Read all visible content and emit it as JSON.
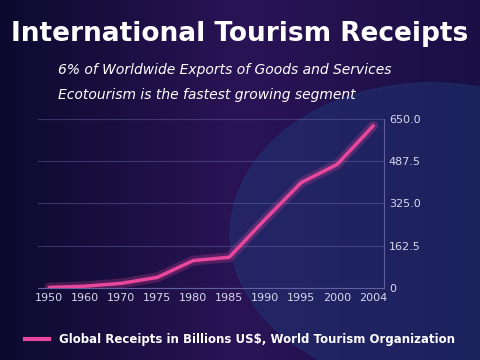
{
  "chart_data": {
    "type": "line",
    "title": "International Tourism Receipts",
    "subtitle": [
      "6% of Worldwide Exports of Goods and Services",
      "Ecotourism is the fastest growing segment"
    ],
    "categories": [
      "1950",
      "1960",
      "1970",
      "1975",
      "1980",
      "1985",
      "1990",
      "1995",
      "2000",
      "2004"
    ],
    "series": [
      {
        "name": "Global Receipts in Billions US$, World Tourism Organization",
        "color": "#e8479c",
        "values": [
          2.1,
          6.9,
          17.9,
          40.7,
          105.3,
          118.1,
          264,
          405,
          475,
          623
        ]
      }
    ],
    "ylim": [
      0,
      650
    ],
    "yticks": [
      0,
      162.5,
      {
        "value": 325,
        "label": "325.0"
      },
      487.5,
      {
        "value": 650,
        "label": "650.0"
      }
    ],
    "grid": true,
    "legend": "lower center"
  }
}
